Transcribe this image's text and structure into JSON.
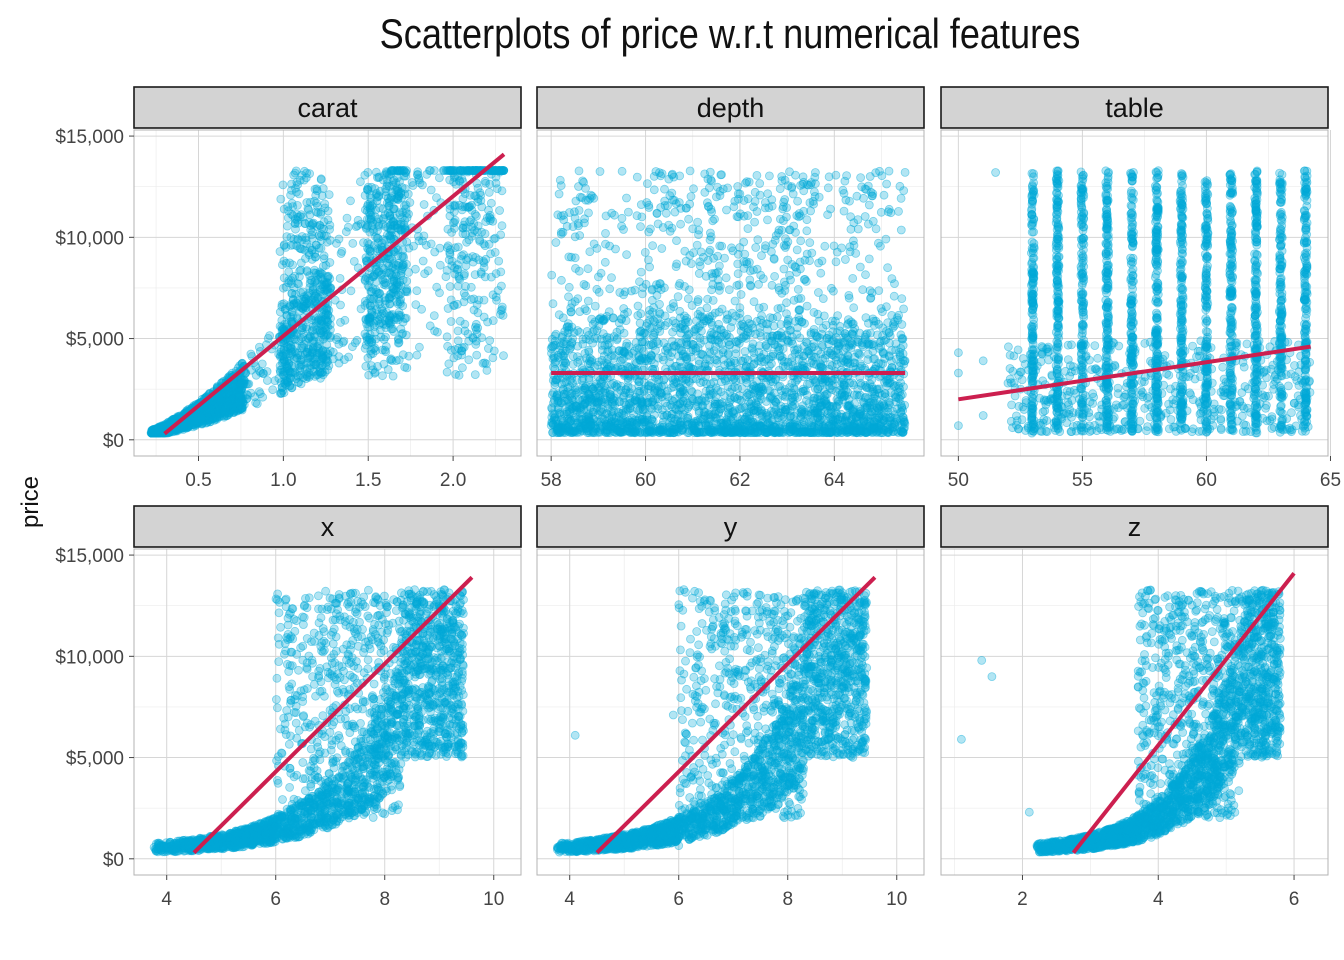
{
  "title": "Scatterplots of price w.r.t numerical features",
  "y_axis_label": "price",
  "colors": {
    "points": "#00a8d8",
    "fit_line": "#cc1f4f",
    "strip_fill": "#d3d3d3"
  },
  "chart_data": {
    "type": "scatter",
    "title": "Scatterplots of price w.r.t numerical features",
    "ylabel": "price",
    "ylim": [
      -800,
      15300
    ],
    "y_ticks": [
      0,
      5000,
      10000,
      15000
    ],
    "y_tick_labels": [
      "$0",
      "$5,000",
      "$10,000",
      "$15,000"
    ],
    "grid": true,
    "facets": [
      {
        "name": "carat",
        "xlim": [
          0.12,
          2.4
        ],
        "x_ticks": [
          0.5,
          1.0,
          1.5,
          2.0
        ],
        "x_tick_labels": [
          "0.5",
          "1.0",
          "1.5",
          "2.0"
        ],
        "fit_line": [
          [
            0.3,
            300
          ],
          [
            2.3,
            14100
          ]
        ]
      },
      {
        "name": "depth",
        "xlim": [
          57.7,
          65.9
        ],
        "x_ticks": [
          58,
          60,
          62,
          64
        ],
        "x_tick_labels": [
          "58",
          "60",
          "62",
          "64"
        ],
        "fit_line": [
          [
            58,
            3300
          ],
          [
            65.5,
            3300
          ]
        ]
      },
      {
        "name": "table",
        "xlim": [
          49.3,
          64.9
        ],
        "x_ticks": [
          50,
          55,
          60,
          65
        ],
        "x_tick_labels": [
          "50",
          "55",
          "60",
          "65"
        ],
        "fit_line": [
          [
            50,
            2000
          ],
          [
            64.2,
            4600
          ]
        ]
      },
      {
        "name": "x",
        "xlim": [
          3.4,
          10.5
        ],
        "x_ticks": [
          4,
          6,
          8,
          10
        ],
        "x_tick_labels": [
          "4",
          "6",
          "8",
          "10"
        ],
        "fit_line": [
          [
            4.5,
            300
          ],
          [
            9.6,
            13900
          ]
        ]
      },
      {
        "name": "y",
        "xlim": [
          3.4,
          10.5
        ],
        "x_ticks": [
          4,
          6,
          8,
          10
        ],
        "x_tick_labels": [
          "4",
          "6",
          "8",
          "10"
        ],
        "fit_line": [
          [
            4.5,
            300
          ],
          [
            9.6,
            13900
          ]
        ]
      },
      {
        "name": "z",
        "xlim": [
          0.8,
          6.5
        ],
        "x_ticks": [
          2,
          4,
          6
        ],
        "x_tick_labels": [
          "2",
          "4",
          "6"
        ],
        "fit_line": [
          [
            2.75,
            300
          ],
          [
            6.0,
            14100
          ]
        ]
      }
    ]
  }
}
